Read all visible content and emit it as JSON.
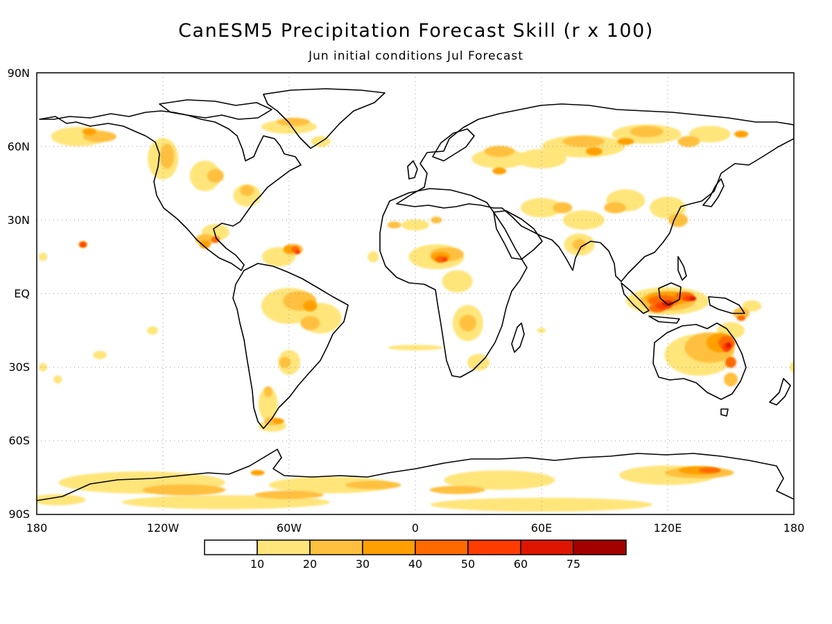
{
  "title": "CanESM5 Precipitation Forecast Skill (r x 100)",
  "subtitle": "Jun initial conditions  Jul Forecast",
  "map": {
    "lat_labels": [
      "90N",
      "60N",
      "30N",
      "EQ",
      "30S",
      "60S",
      "90S"
    ],
    "lon_labels": [
      "180",
      "120W",
      "60W",
      "0",
      "60E",
      "120E",
      "180"
    ],
    "colorbar": {
      "colors": [
        "#ffffff",
        "#ffe57a",
        "#ffc040",
        "#ffa000",
        "#ff6a00",
        "#ff3d00",
        "#dd1500",
        "#a30000"
      ],
      "labels": [
        "10",
        "20",
        "30",
        "40",
        "50",
        "60",
        "75"
      ]
    },
    "skill_regions": [
      {
        "region": "Maritime Continent / Indonesia",
        "lon": 120,
        "lat": -3,
        "level": 6
      },
      {
        "region": "Northeast Australia",
        "lon": 148,
        "lat": -22,
        "level": 6
      },
      {
        "region": "Sahel / Chad",
        "lon": 15,
        "lat": 15,
        "level": 5
      },
      {
        "region": "Caribbean",
        "lon": -55,
        "lat": 17,
        "level": 5
      },
      {
        "region": "Central America / Mexico",
        "lon": -95,
        "lat": 20,
        "level": 5
      },
      {
        "region": "Hawaii",
        "lon": -157,
        "lat": 20,
        "level": 6
      },
      {
        "region": "Amazon / Brazil",
        "lon": -55,
        "lat": -5,
        "level": 3
      },
      {
        "region": "Patagonia",
        "lon": -68,
        "lat": -52,
        "level": 4
      },
      {
        "region": "Eastern Antarctica",
        "lon": 135,
        "lat": -72,
        "level": 4
      },
      {
        "region": "Southern Africa",
        "lon": 25,
        "lat": -15,
        "level": 3
      },
      {
        "region": "Siberia",
        "lon": 100,
        "lat": 65,
        "level": 3
      },
      {
        "region": "India",
        "lon": 78,
        "lat": 22,
        "level": 3
      },
      {
        "region": "Alaska",
        "lon": -150,
        "lat": 64,
        "level": 3
      }
    ]
  }
}
